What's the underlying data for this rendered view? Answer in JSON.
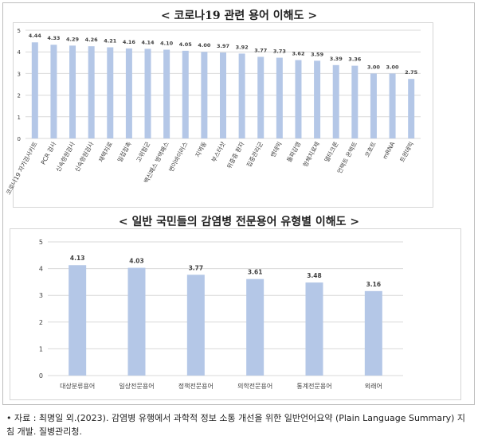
{
  "source_text": "• 자료 : 최명일 외.(2023). 감염병 유행에서 과학적 정보 소통 개선을 위한 일반언어요약 (Plain Language Summary) 지침 개발. 질병관리청.",
  "colors": {
    "bar": "#b4c7e7",
    "grid": "#d9d9d9",
    "label": "#404040"
  },
  "chart_data": [
    {
      "type": "bar",
      "title": "< 코로나19 관련 용어 이해도 >",
      "categories": [
        "코로나19 자가검사키트",
        "PCR 검사",
        "신속항원검사",
        "신속항원검사",
        "재택치료",
        "밀접접촉",
        "고위험군",
        "백신패스 방역패스",
        "변이바이러스",
        "지역동",
        "부스터샷",
        "위중증 환자",
        "집중관리군",
        "엔데믹",
        "돌파감염",
        "항체치료제",
        "델타크론",
        "언택트 온택트",
        "코호트",
        "mRNA",
        "트윈데믹"
      ],
      "values": [
        4.44,
        4.33,
        4.29,
        4.26,
        4.21,
        4.16,
        4.14,
        4.1,
        4.05,
        4.0,
        3.97,
        3.92,
        3.77,
        3.73,
        3.62,
        3.59,
        3.39,
        3.36,
        3.0,
        3.0,
        2.75
      ],
      "value_labels": [
        "4.44",
        "4.33",
        "4.29",
        "4.26",
        "4.21",
        "4.16",
        "4.14",
        "4.10",
        "4.05",
        "4.00",
        "3.97",
        "3.92",
        "3.77",
        "3.73",
        "3.62",
        "3.59",
        "3.39",
        "3.36",
        "3.00",
        "3.00",
        "2.75"
      ],
      "ylim": [
        0,
        5
      ],
      "yticks": [
        "0",
        "1",
        "2",
        "3",
        "4",
        "5"
      ],
      "grid": true
    },
    {
      "type": "bar",
      "title": "< 일반 국민들의 감염병 전문용어 유형별 이해도 >",
      "categories": [
        "대상분류용어",
        "일상전문용어",
        "정책전문용어",
        "의학전문용어",
        "통계전문용어",
        "외래어"
      ],
      "values": [
        4.13,
        4.03,
        3.77,
        3.61,
        3.48,
        3.16
      ],
      "value_labels": [
        "4.13",
        "4.03",
        "3.77",
        "3.61",
        "3.48",
        "3.16"
      ],
      "ylim": [
        0,
        5
      ],
      "yticks": [
        "0",
        "1",
        "2",
        "3",
        "4",
        "5"
      ],
      "grid": true
    }
  ]
}
